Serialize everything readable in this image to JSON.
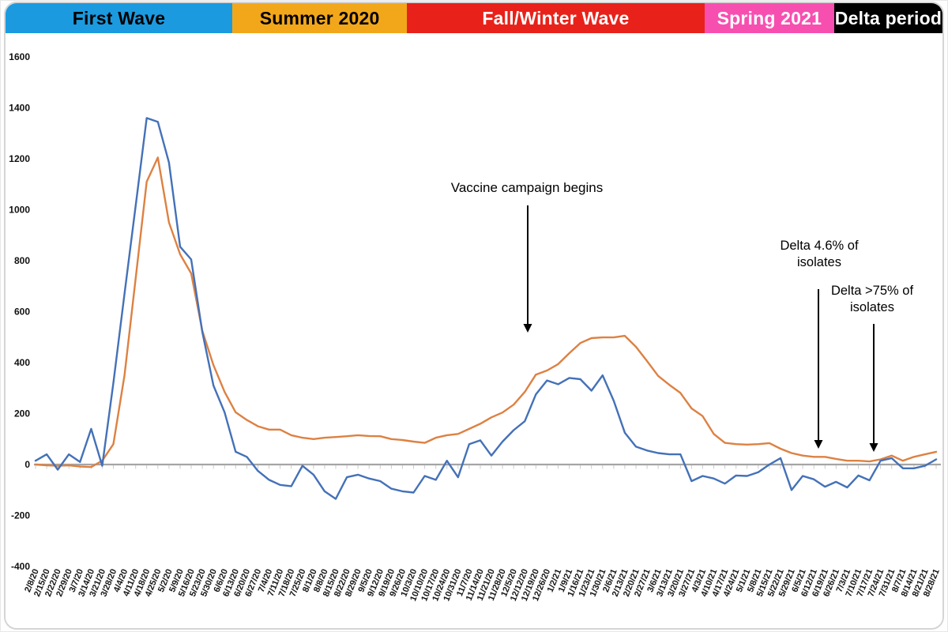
{
  "periods": [
    {
      "label": "First Wave",
      "color": "#1b9ae0",
      "text_color": "#000000"
    },
    {
      "label": "Summer 2020",
      "color": "#f2a71b",
      "text_color": "#000000"
    },
    {
      "label": "Fall/Winter Wave",
      "color": "#e8221a",
      "text_color": "#ffffff"
    },
    {
      "label": "Spring 2021",
      "color": "#f74fb0",
      "text_color": "#ffffff"
    },
    {
      "label": "Delta period",
      "color": "#000000",
      "text_color": "#ffffff"
    }
  ],
  "annotations": {
    "vaccine": {
      "line1": "Vaccine campaign begins"
    },
    "delta46": {
      "line1": "Delta 4.6% of",
      "line2": "isolates"
    },
    "delta75": {
      "line1": "Delta >75% of",
      "line2": "isolates"
    }
  },
  "chart_data": {
    "type": "line",
    "title": "",
    "xlabel": "",
    "ylabel": "",
    "ylim": [
      -400,
      1600
    ],
    "yticks": [
      1600,
      1400,
      1200,
      1000,
      800,
      600,
      400,
      200,
      0,
      -200,
      -400
    ],
    "grid": false,
    "legend": "none",
    "categories": [
      "2/8/20",
      "2/15/20",
      "2/22/20",
      "2/29/20",
      "3/7/20",
      "3/14/20",
      "3/21/20",
      "3/28/20",
      "4/4/20",
      "4/11/20",
      "4/18/20",
      "4/25/20",
      "5/2/20",
      "5/9/20",
      "5/16/20",
      "5/23/20",
      "5/30/20",
      "6/6/20",
      "6/13/20",
      "6/20/20",
      "6/27/20",
      "7/4/20",
      "7/11/20",
      "7/18/20",
      "7/25/20",
      "8/1/20",
      "8/8/20",
      "8/15/20",
      "8/22/20",
      "8/29/20",
      "9/5/20",
      "9/12/20",
      "9/19/20",
      "9/26/20",
      "10/3/20",
      "10/10/20",
      "10/17/20",
      "10/24/20",
      "10/31/20",
      "11/7/20",
      "11/14/20",
      "11/21/20",
      "11/28/20",
      "12/5/20",
      "12/12/20",
      "12/19/20",
      "12/26/20",
      "1/2/21",
      "1/9/21",
      "1/16/21",
      "1/23/21",
      "1/30/21",
      "2/6/21",
      "2/13/21",
      "2/20/21",
      "2/27/21",
      "3/6/21",
      "3/13/21",
      "3/20/21",
      "3/27/21",
      "4/3/21",
      "4/10/21",
      "4/17/21",
      "4/24/21",
      "5/1/21",
      "5/8/21",
      "5/15/21",
      "5/22/21",
      "5/29/21",
      "6/5/21",
      "6/12/21",
      "6/19/21",
      "6/26/21",
      "7/3/21",
      "7/10/21",
      "7/17/21",
      "7/24/21",
      "7/31/21",
      "8/7/21",
      "8/14/21",
      "8/21/21",
      "8/28/21"
    ],
    "series": [
      {
        "name": "blue-series",
        "color": "#4471b8",
        "values": [
          15,
          40,
          -20,
          40,
          10,
          140,
          -5,
          320,
          670,
          1015,
          1360,
          1345,
          1185,
          855,
          805,
          520,
          310,
          205,
          50,
          30,
          -25,
          -60,
          -80,
          -85,
          -5,
          -40,
          -105,
          -135,
          -50,
          -40,
          -55,
          -65,
          -95,
          -105,
          -110,
          -45,
          -60,
          15,
          -50,
          80,
          95,
          35,
          90,
          135,
          170,
          275,
          330,
          315,
          340,
          335,
          290,
          350,
          250,
          125,
          70,
          55,
          45,
          40,
          40,
          -65,
          -45,
          -55,
          -75,
          -43,
          -45,
          -30,
          0,
          25,
          -100,
          -45,
          -58,
          -87,
          -68,
          -90,
          -43,
          -62,
          15,
          25,
          -15,
          -15,
          -5,
          20
        ]
      },
      {
        "name": "orange-series",
        "color": "#dd8142",
        "values": [
          0,
          -3,
          -5,
          -3,
          -8,
          -10,
          15,
          80,
          350,
          730,
          1110,
          1205,
          950,
          825,
          750,
          525,
          390,
          285,
          205,
          175,
          150,
          137,
          137,
          115,
          105,
          100,
          105,
          108,
          111,
          115,
          112,
          111,
          100,
          96,
          90,
          85,
          105,
          115,
          120,
          140,
          160,
          185,
          204,
          235,
          285,
          353,
          369,
          394,
          437,
          477,
          496,
          499,
          499,
          505,
          462,
          406,
          348,
          313,
          281,
          220,
          190,
          120,
          85,
          80,
          78,
          80,
          84,
          62,
          45,
          35,
          30,
          30,
          22,
          15,
          15,
          12,
          20,
          35,
          15,
          30,
          40,
          50
        ]
      }
    ]
  }
}
